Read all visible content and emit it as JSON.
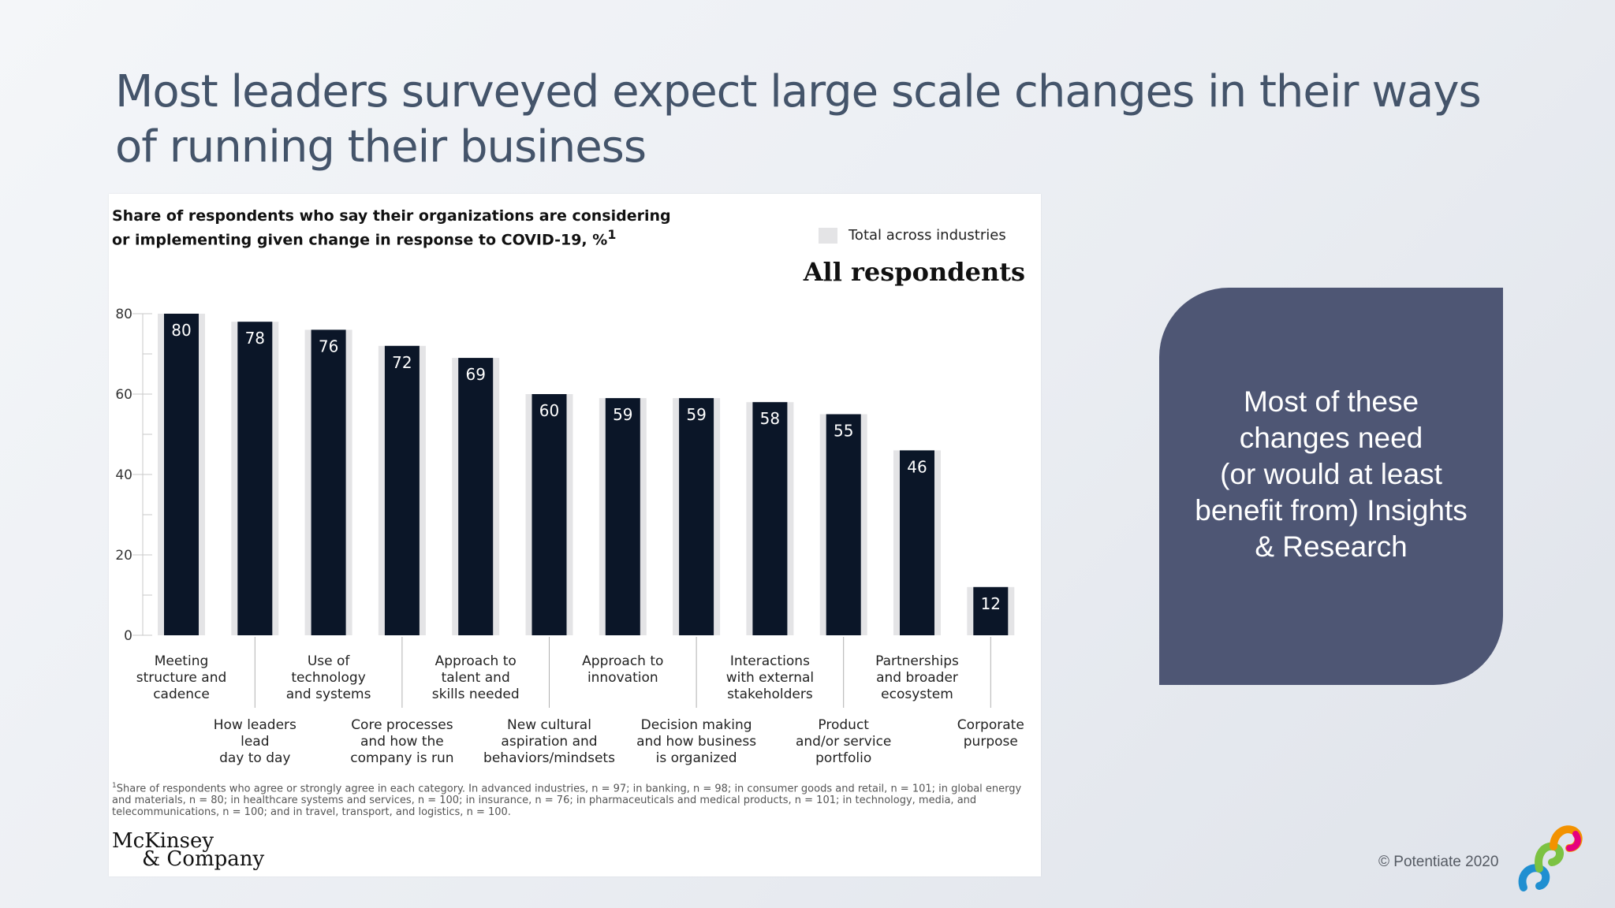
{
  "slide": {
    "title_line1": "Most leaders surveyed expect large scale changes in their ways",
    "title_line2": "of running their business",
    "callout_lines": [
      "Most of these",
      "changes need",
      "(or would at least",
      "benefit from) Insights",
      "& Research"
    ],
    "copyright": "© Potentiate 2020"
  },
  "panel": {
    "subtitle_line1": "Share of respondents who say their organizations are considering",
    "subtitle_line2": "or implementing given change in response to COVID-19, %",
    "subtitle_sup": "1",
    "legend_label": "Total across industries",
    "heading": "All respondents",
    "footnote_sup": "1",
    "footnote": "Share of respondents who agree or strongly agree in each category. In advanced industries, n = 97; in banking, n = 98; in consumer goods and retail, n = 101; in global energy and materials, n = 80; in healthcare systems and services, n = 100; in insurance, n = 76; in pharmaceuticals and medical products, n = 101; in technology, media, and telecommunications, n = 100; and in travel, transport, and logistics, n = 100.",
    "logo_line1": "McKinsey",
    "logo_line2": "& Company"
  },
  "chart_data": {
    "type": "bar",
    "categories": [
      [
        "Meeting",
        "structure and",
        "cadence"
      ],
      [
        "How leaders",
        "lead",
        "day to day"
      ],
      [
        "Use of",
        "technology",
        "and systems"
      ],
      [
        "Core processes",
        "and how the",
        "company is run"
      ],
      [
        "Approach to",
        "talent and",
        "skills needed"
      ],
      [
        "New cultural",
        "aspiration and",
        "behaviors/mindsets"
      ],
      [
        "Approach to",
        "innovation"
      ],
      [
        "Decision making",
        "and how business",
        "is organized"
      ],
      [
        "Interactions",
        "with external",
        "stakeholders"
      ],
      [
        "Product",
        "and/or service",
        "portfolio"
      ],
      [
        "Partnerships",
        "and broader",
        "ecosystem"
      ],
      [
        "Corporate",
        "purpose"
      ]
    ],
    "series": [
      {
        "name": "Total across industries",
        "values": [
          80,
          78,
          76,
          72,
          69,
          60,
          59,
          59,
          58,
          55,
          46,
          12
        ]
      }
    ],
    "ylim": [
      0,
      80
    ],
    "yticks": [
      0,
      20,
      40,
      60,
      80
    ],
    "grid": false,
    "legend_position": "top-right",
    "colors": {
      "bar": "#0b1628",
      "bar_background": "#e4e4e6",
      "label": "#ffffff"
    }
  }
}
